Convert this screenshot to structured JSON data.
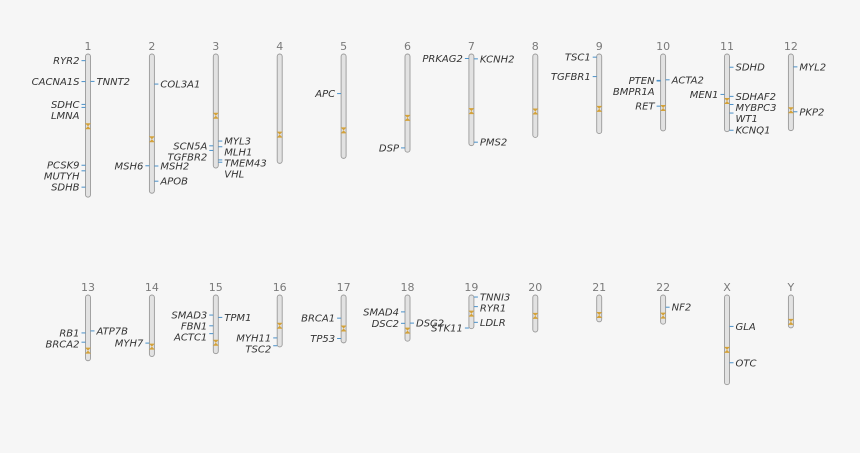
{
  "colors": {
    "background": "#f6f6f6",
    "chromosome_fill": "#e2e2e2",
    "chromosome_stroke": "#9a9a9a",
    "gene_marker": "#4a90c8",
    "centromere": "#d4a23a",
    "label_text": "#333333",
    "chromosome_number": "#7a7a7a"
  },
  "chromosomes": [
    {
      "name": "1",
      "row": 0,
      "length": 248.96,
      "centromere": 123.4,
      "genes": [
        {
          "name": "RYR2",
          "pos": 237.4
        },
        {
          "name": "TNNT2",
          "pos": 201.3
        },
        {
          "name": "CACNA1S",
          "pos": 201.0
        },
        {
          "name": "SDHC",
          "pos": 161.3
        },
        {
          "name": "LMNA",
          "pos": 156.1
        },
        {
          "name": "PCSK9",
          "pos": 55.5
        },
        {
          "name": "MUTYH",
          "pos": 45.8
        },
        {
          "name": "SDHB",
          "pos": 17.4
        }
      ]
    },
    {
      "name": "2",
      "row": 0,
      "length": 242.19,
      "centromere": 93.9,
      "genes": [
        {
          "name": "COL3A1",
          "pos": 189.9
        },
        {
          "name": "MSH6",
          "pos": 47.8
        },
        {
          "name": "MSH2",
          "pos": 47.4
        },
        {
          "name": "APOB",
          "pos": 21.0
        }
      ]
    },
    {
      "name": "3",
      "row": 0,
      "length": 198.3,
      "centromere": 90.9,
      "genes": [
        {
          "name": "MYL3",
          "pos": 46.9
        },
        {
          "name": "SCN5A",
          "pos": 38.6
        },
        {
          "name": "MLH1",
          "pos": 37.0
        },
        {
          "name": "TGFBR2",
          "pos": 30.6
        },
        {
          "name": "TMEM43",
          "pos": 14.1
        },
        {
          "name": "VHL",
          "pos": 10.1
        }
      ]
    },
    {
      "name": "4",
      "row": 0,
      "length": 190.21,
      "centromere": 50.0,
      "genes": []
    },
    {
      "name": "5",
      "row": 0,
      "length": 181.54,
      "centromere": 48.8,
      "genes": [
        {
          "name": "APC",
          "pos": 112.7
        }
      ]
    },
    {
      "name": "6",
      "row": 0,
      "length": 170.81,
      "centromere": 59.8,
      "genes": [
        {
          "name": "DSP",
          "pos": 7.5
        }
      ]
    },
    {
      "name": "7",
      "row": 0,
      "length": 159.35,
      "centromere": 60.1,
      "genes": [
        {
          "name": "PRKAG2",
          "pos": 151.5
        },
        {
          "name": "KCNH2",
          "pos": 150.9
        },
        {
          "name": "PMS2",
          "pos": 6.0
        }
      ]
    },
    {
      "name": "8",
      "row": 0,
      "length": 145.14,
      "centromere": 45.2,
      "genes": []
    },
    {
      "name": "9",
      "row": 0,
      "length": 138.39,
      "centromere": 43.0,
      "genes": [
        {
          "name": "TSC1",
          "pos": 132.9
        },
        {
          "name": "TGFBR1",
          "pos": 99.1
        }
      ]
    },
    {
      "name": "10",
      "row": 0,
      "length": 133.8,
      "centromere": 39.8,
      "genes": [
        {
          "name": "PTEN",
          "pos": 87.9
        },
        {
          "name": "BMPR1A",
          "pos": 86.8
        },
        {
          "name": "ACTA2",
          "pos": 88.9
        },
        {
          "name": "RET",
          "pos": 43.1
        }
      ]
    },
    {
      "name": "11",
      "row": 0,
      "length": 135.09,
      "centromere": 53.4,
      "genes": [
        {
          "name": "SDHD",
          "pos": 112.1
        },
        {
          "name": "MEN1",
          "pos": 64.8
        },
        {
          "name": "SDHAF2",
          "pos": 61.4
        },
        {
          "name": "MYBPC3",
          "pos": 47.3
        },
        {
          "name": "WT1",
          "pos": 32.4
        },
        {
          "name": "KCNQ1",
          "pos": 2.5
        }
      ]
    },
    {
      "name": "12",
      "row": 0,
      "length": 133.28,
      "centromere": 35.5,
      "genes": [
        {
          "name": "MYL2",
          "pos": 110.9
        },
        {
          "name": "PKP2",
          "pos": 32.8
        }
      ]
    },
    {
      "name": "13",
      "row": 1,
      "length": 114.36,
      "centromere": 17.7,
      "genes": [
        {
          "name": "RB1",
          "pos": 48.4
        },
        {
          "name": "ATP7B",
          "pos": 51.9
        },
        {
          "name": "BRCA2",
          "pos": 32.3
        }
      ]
    },
    {
      "name": "14",
      "row": 1,
      "length": 107.04,
      "centromere": 17.2,
      "genes": [
        {
          "name": "MYH7",
          "pos": 23.4
        }
      ]
    },
    {
      "name": "15",
      "row": 1,
      "length": 101.99,
      "centromere": 19.0,
      "genes": [
        {
          "name": "SMAD3",
          "pos": 67.1
        },
        {
          "name": "TPM1",
          "pos": 63.0
        },
        {
          "name": "FBN1",
          "pos": 48.4
        },
        {
          "name": "ACTC1",
          "pos": 34.8
        }
      ]
    },
    {
      "name": "16",
      "row": 1,
      "length": 90.34,
      "centromere": 36.8,
      "genes": [
        {
          "name": "MYH11",
          "pos": 15.7
        },
        {
          "name": "TSC2",
          "pos": 2.1
        }
      ]
    },
    {
      "name": "17",
      "row": 1,
      "length": 83.26,
      "centromere": 25.1,
      "genes": [
        {
          "name": "BRCA1",
          "pos": 43.0
        },
        {
          "name": "TP53",
          "pos": 7.6
        }
      ]
    },
    {
      "name": "18",
      "row": 1,
      "length": 80.37,
      "centromere": 18.5,
      "genes": [
        {
          "name": "SMAD4",
          "pos": 51.0
        },
        {
          "name": "DSC2",
          "pos": 31.1
        },
        {
          "name": "DSG2",
          "pos": 31.5
        }
      ]
    },
    {
      "name": "19",
      "row": 1,
      "length": 58.62,
      "centromere": 26.2,
      "genes": [
        {
          "name": "TNNI3",
          "pos": 55.1
        },
        {
          "name": "RYR1",
          "pos": 38.4
        },
        {
          "name": "LDLR",
          "pos": 11.1
        },
        {
          "name": "STK11",
          "pos": 1.2
        }
      ]
    },
    {
      "name": "20",
      "row": 1,
      "length": 64.44,
      "centromere": 28.1,
      "genes": []
    },
    {
      "name": "21",
      "row": 1,
      "length": 46.71,
      "centromere": 12.0,
      "genes": []
    },
    {
      "name": "22",
      "row": 1,
      "length": 50.82,
      "centromere": 15.0,
      "genes": [
        {
          "name": "NF2",
          "pos": 29.6
        }
      ]
    },
    {
      "name": "X",
      "row": 1,
      "length": 156.04,
      "centromere": 60.6,
      "genes": [
        {
          "name": "GLA",
          "pos": 101.4
        },
        {
          "name": "OTC",
          "pos": 38.2
        }
      ]
    },
    {
      "name": "Y",
      "row": 1,
      "length": 57.23,
      "centromere": 10.4,
      "genes": []
    }
  ]
}
